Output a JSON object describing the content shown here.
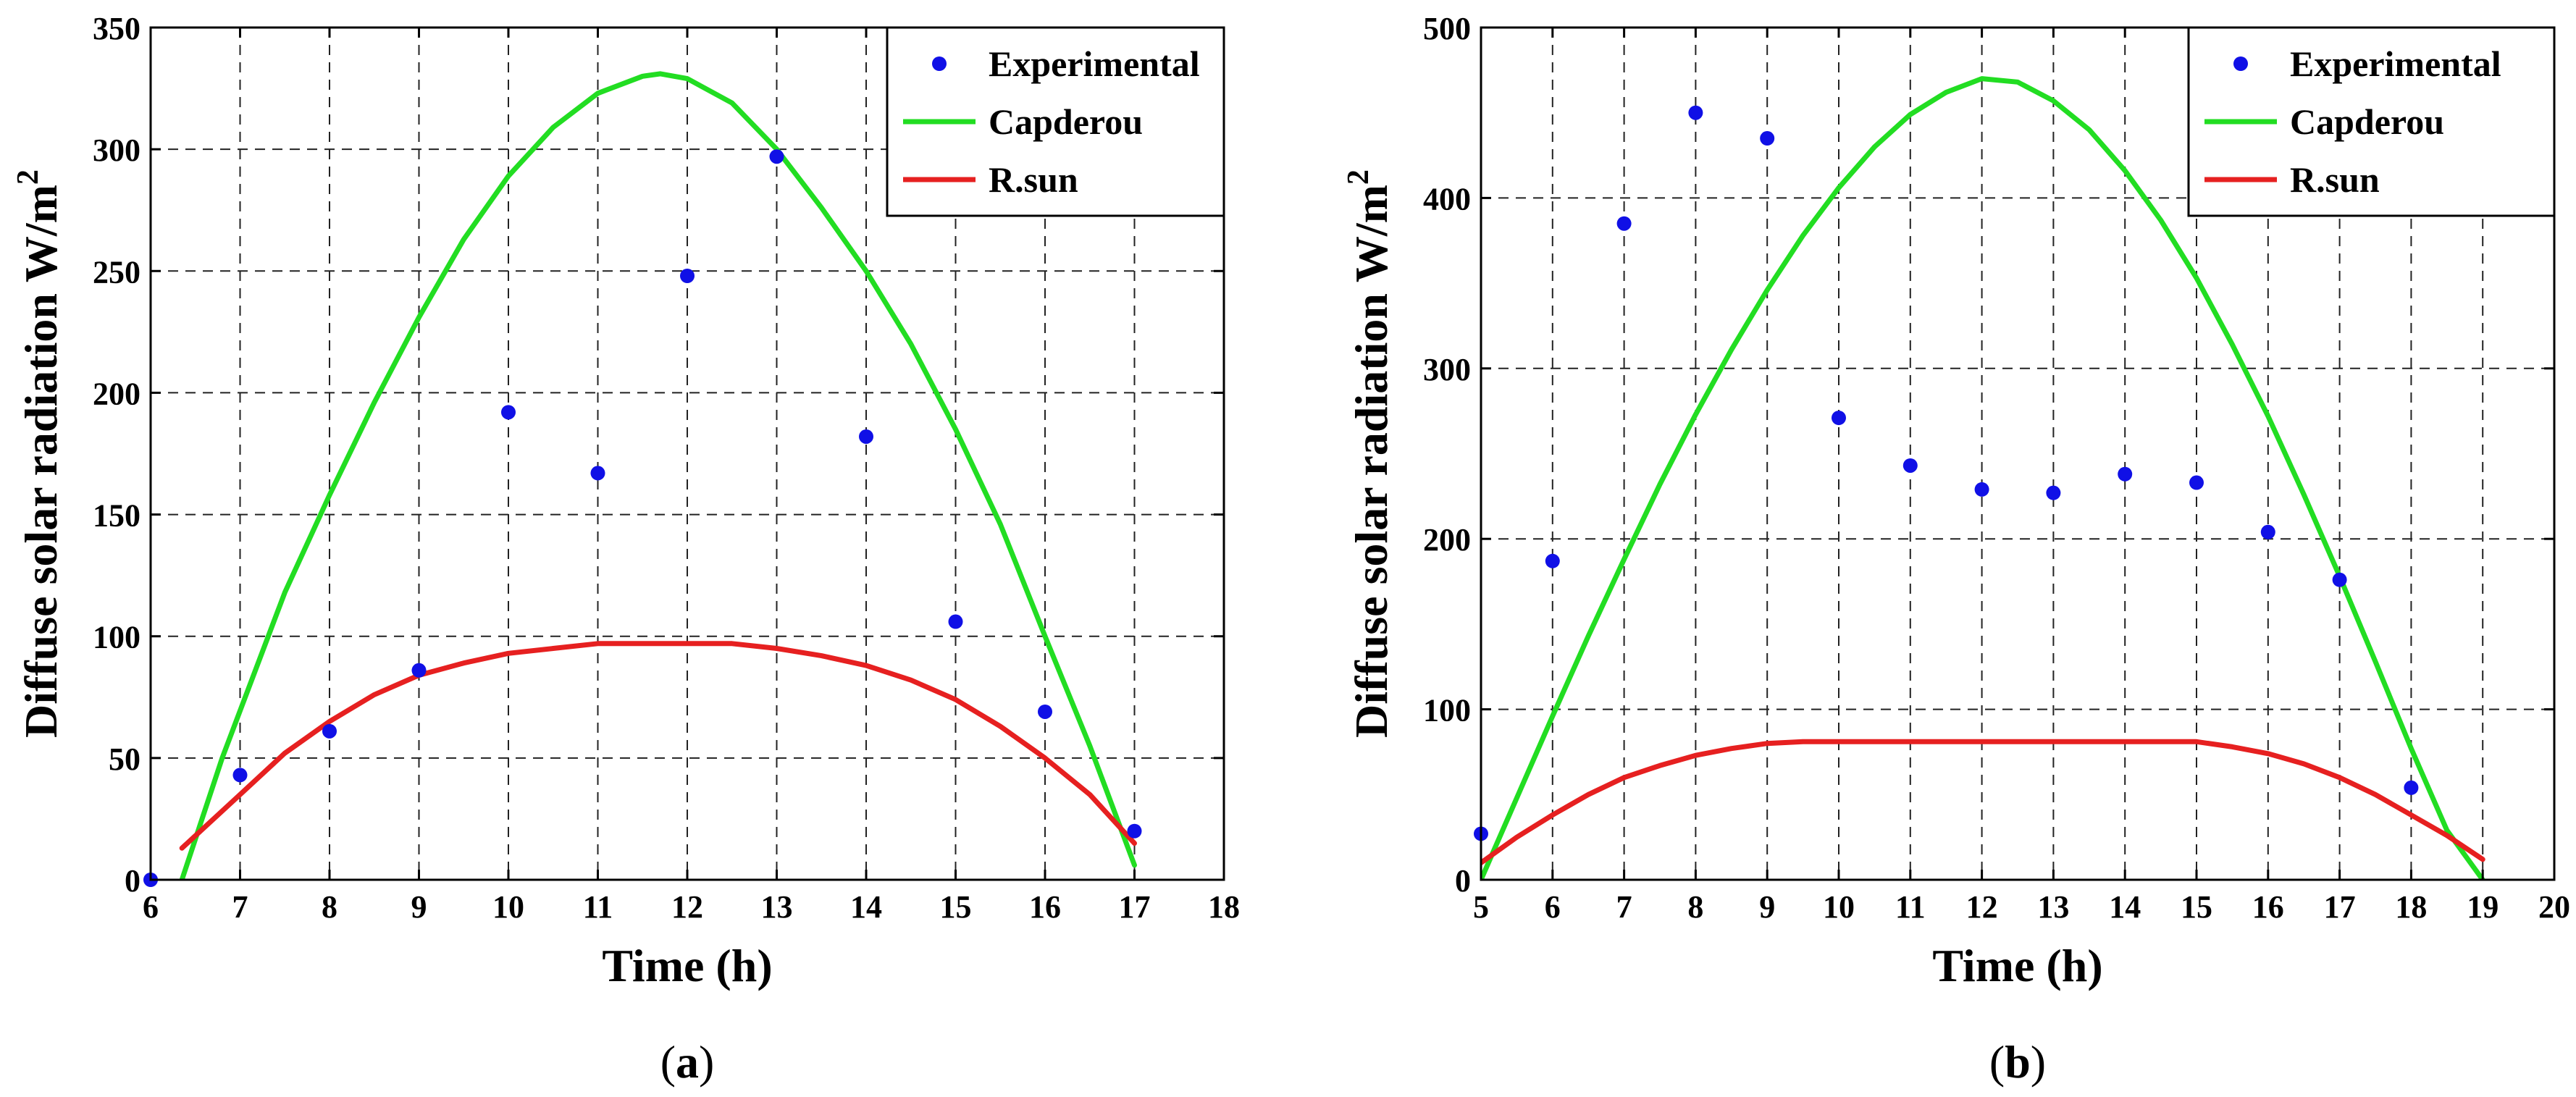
{
  "chart_data": [
    {
      "type": "line",
      "caption_letter": "a",
      "xlabel": "Time (h)",
      "ylabel": "Diffuse solar radiation W/m",
      "ylabel_superscript": "2",
      "xlim": [
        6,
        18
      ],
      "ylim": [
        0,
        350
      ],
      "xticks": [
        6,
        7,
        8,
        9,
        10,
        11,
        12,
        13,
        14,
        15,
        16,
        17,
        18
      ],
      "yticks": [
        0,
        50,
        100,
        150,
        200,
        250,
        300,
        350
      ],
      "grid": true,
      "legend_position": "top-right",
      "series": [
        {
          "name": "Experimental",
          "kind": "scatter",
          "color": "#1010e6",
          "x": [
            6,
            7,
            8,
            9,
            10,
            11,
            12,
            13,
            14,
            15,
            16,
            17
          ],
          "y": [
            0,
            43,
            61,
            86,
            192,
            167,
            248,
            297,
            182,
            106,
            69,
            20
          ]
        },
        {
          "name": "Capderou",
          "kind": "line",
          "color": "#22dd22",
          "x": [
            6.35,
            6.8,
            7.5,
            8.0,
            8.5,
            9.0,
            9.5,
            10.0,
            10.5,
            11.0,
            11.5,
            11.7,
            12.0,
            12.5,
            13.0,
            13.5,
            14.0,
            14.5,
            15.0,
            15.5,
            16.0,
            16.5,
            17.0
          ],
          "y": [
            0,
            50,
            118,
            158,
            196,
            231,
            263,
            289,
            309,
            323,
            330,
            331,
            329,
            319,
            300,
            276,
            250,
            220,
            185,
            146,
            100,
            55,
            6
          ]
        },
        {
          "name": "R.sun",
          "kind": "line",
          "color": "#e62020",
          "x": [
            6.35,
            7.0,
            7.5,
            8.0,
            8.5,
            9.0,
            9.5,
            10.0,
            10.5,
            11.0,
            11.5,
            12.0,
            12.5,
            13.0,
            13.5,
            14.0,
            14.5,
            15.0,
            15.5,
            16.0,
            16.5,
            17.0
          ],
          "y": [
            13,
            35,
            52,
            65,
            76,
            84,
            89,
            93,
            95,
            97,
            97,
            97,
            97,
            95,
            92,
            88,
            82,
            74,
            63,
            50,
            35,
            15
          ]
        }
      ]
    },
    {
      "type": "line",
      "caption_letter": "b",
      "xlabel": "Time (h)",
      "ylabel": "Diffuse solar radiation W/m",
      "ylabel_superscript": "2",
      "xlim": [
        5,
        20
      ],
      "ylim": [
        0,
        500
      ],
      "xticks": [
        5,
        6,
        7,
        8,
        9,
        10,
        11,
        12,
        13,
        14,
        15,
        16,
        17,
        18,
        19,
        20
      ],
      "yticks": [
        0,
        100,
        200,
        300,
        400,
        500
      ],
      "grid": true,
      "legend_position": "top-right",
      "series": [
        {
          "name": "Experimental",
          "kind": "scatter",
          "color": "#1010e6",
          "x": [
            5,
            6,
            7,
            8,
            9,
            10,
            11,
            12,
            13,
            14,
            15,
            16,
            17,
            18
          ],
          "y": [
            27,
            187,
            385,
            450,
            435,
            271,
            243,
            229,
            227,
            238,
            233,
            204,
            176,
            54
          ]
        },
        {
          "name": "Capderou",
          "kind": "line",
          "color": "#22dd22",
          "x": [
            5,
            5.5,
            6,
            6.5,
            7,
            7.5,
            8,
            8.5,
            9,
            9.5,
            10,
            10.5,
            11,
            11.5,
            12,
            12.5,
            13,
            13.5,
            14,
            14.5,
            15,
            15.5,
            16,
            16.5,
            17,
            17.5,
            18,
            18.5,
            19
          ],
          "y": [
            0,
            48,
            96,
            143,
            188,
            232,
            273,
            311,
            346,
            378,
            406,
            430,
            449,
            462,
            470,
            468,
            457,
            440,
            416,
            387,
            353,
            314,
            272,
            226,
            178,
            128,
            77,
            29,
            0
          ]
        },
        {
          "name": "R.sun",
          "kind": "line",
          "color": "#e62020",
          "x": [
            5,
            5.5,
            6,
            6.5,
            7,
            7.5,
            8,
            8.5,
            9,
            9.5,
            10,
            11,
            12,
            13,
            14,
            14.5,
            15,
            15.5,
            16,
            16.5,
            17,
            17.5,
            18,
            18.5,
            19
          ],
          "y": [
            10,
            25,
            38,
            50,
            60,
            67,
            73,
            77,
            80,
            81,
            81,
            81,
            81,
            81,
            81,
            81,
            81,
            78,
            74,
            68,
            60,
            50,
            38,
            26,
            12
          ]
        }
      ]
    }
  ]
}
